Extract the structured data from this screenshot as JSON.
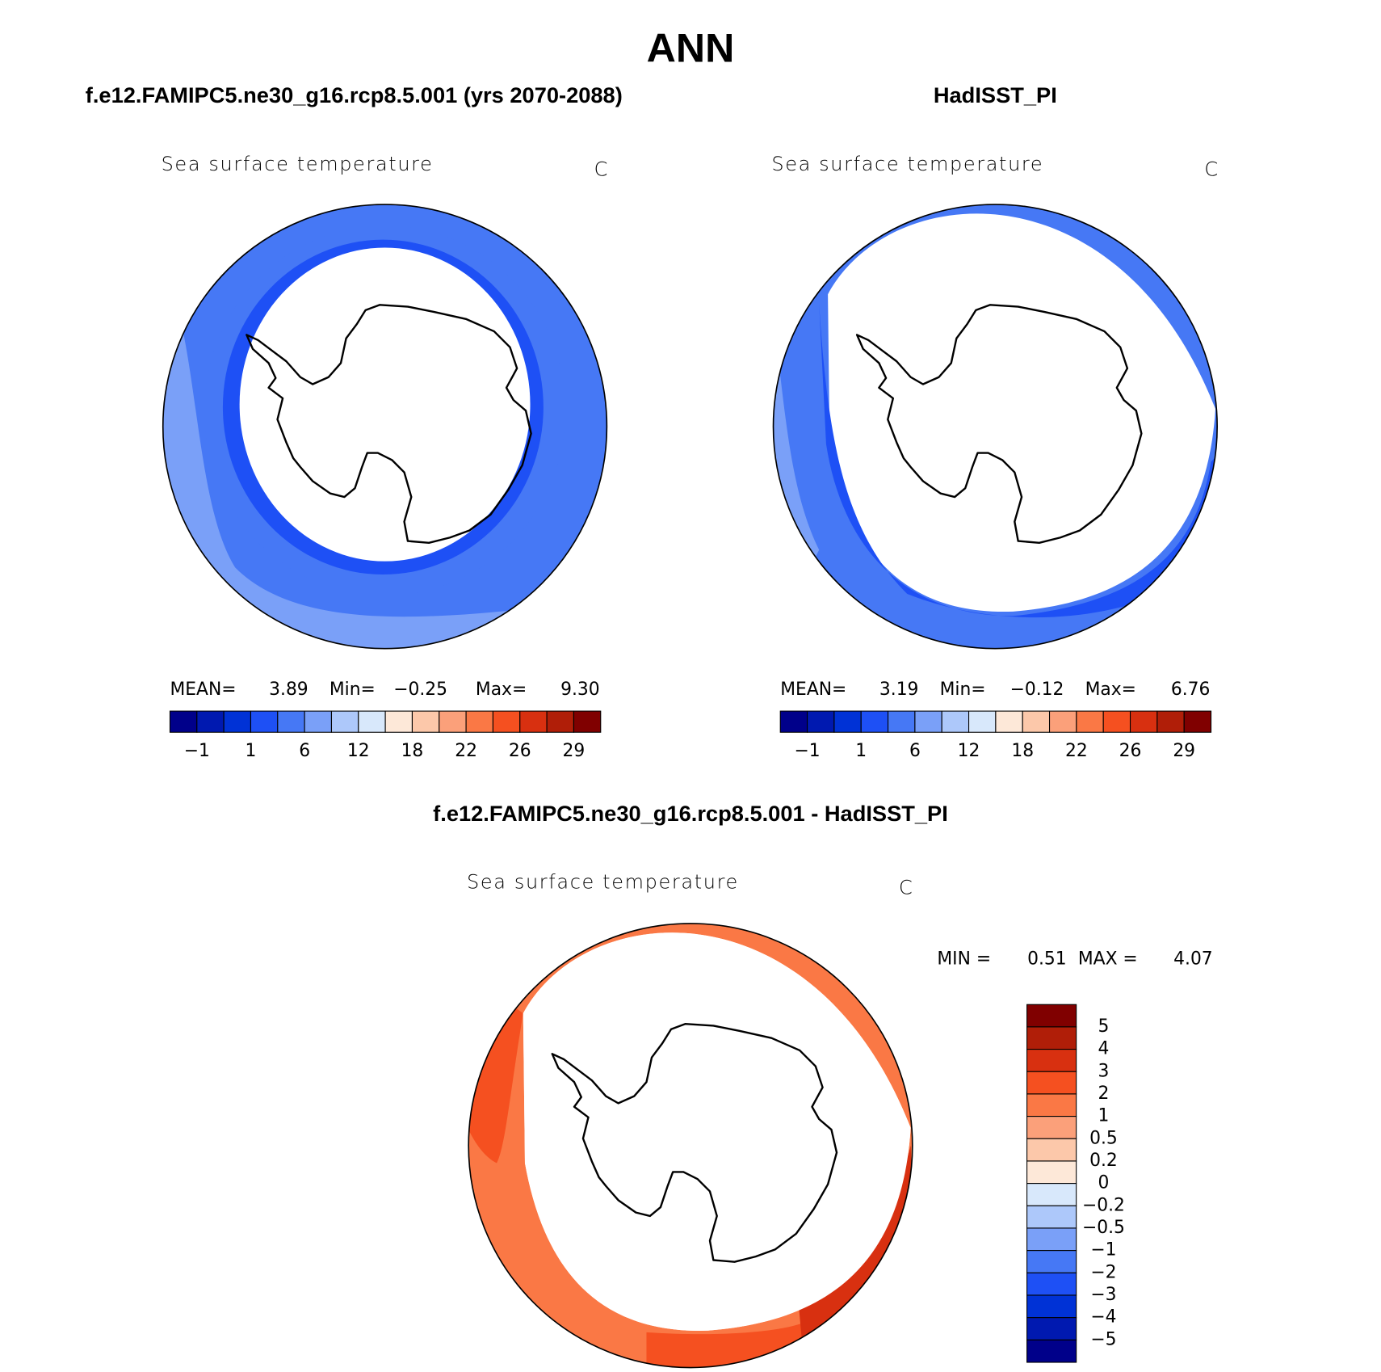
{
  "title": "ANN",
  "panels": [
    {
      "title": "f.e12.FAMIPC5.ne30_g16.rcp8.5.001 (yrs 2070-2088)",
      "variable": "Sea surface temperature",
      "units": "C",
      "stats": [
        {
          "label": "MEAN=",
          "value": "3.89"
        },
        {
          "label": "Min=",
          "value": "−0.25"
        },
        {
          "label": "Max=",
          "value": "9.30"
        }
      ]
    },
    {
      "title": "HadISST_PI",
      "variable": "Sea surface temperature",
      "units": "C",
      "stats": [
        {
          "label": "MEAN=",
          "value": "3.19"
        },
        {
          "label": "Min=",
          "value": "−0.12"
        },
        {
          "label": "Max=",
          "value": "6.76"
        }
      ]
    },
    {
      "title": "f.e12.FAMIPC5.ne30_g16.rcp8.5.001 - HadISST_PI",
      "variable": "Sea surface temperature",
      "units": "C",
      "stats": [
        {
          "label": "MIN =",
          "value": "0.51"
        },
        {
          "label": "MAX =",
          "value": "4.07"
        }
      ]
    }
  ],
  "colorbar": {
    "colors": [
      "#00008a",
      "#0019b0",
      "#0032d6",
      "#1e50f5",
      "#4678f5",
      "#7aa0f8",
      "#adc8fa",
      "#d8e8fb",
      "#fde8d8",
      "#fcc8aa",
      "#fba07a",
      "#fa7845",
      "#f55020",
      "#d83010",
      "#b01e08",
      "#800000"
    ],
    "labels": [
      "−1",
      "1",
      "6",
      "12",
      "18",
      "22",
      "26",
      "29"
    ]
  },
  "diff_colorbar": {
    "colors": [
      "#800000",
      "#b01e08",
      "#d83010",
      "#f55020",
      "#fa7845",
      "#fba07a",
      "#fcc8aa",
      "#fde8d8",
      "#d8e8fb",
      "#adc8fa",
      "#7aa0f8",
      "#4678f5",
      "#1e50f5",
      "#0032d6",
      "#0019b0",
      "#00008a"
    ],
    "labels": [
      "5",
      "4",
      "3",
      "2",
      "1",
      "0.5",
      "0.2",
      "0",
      "−0.2",
      "−0.5",
      "−1",
      "−2",
      "−3",
      "−4",
      "−5"
    ]
  }
}
